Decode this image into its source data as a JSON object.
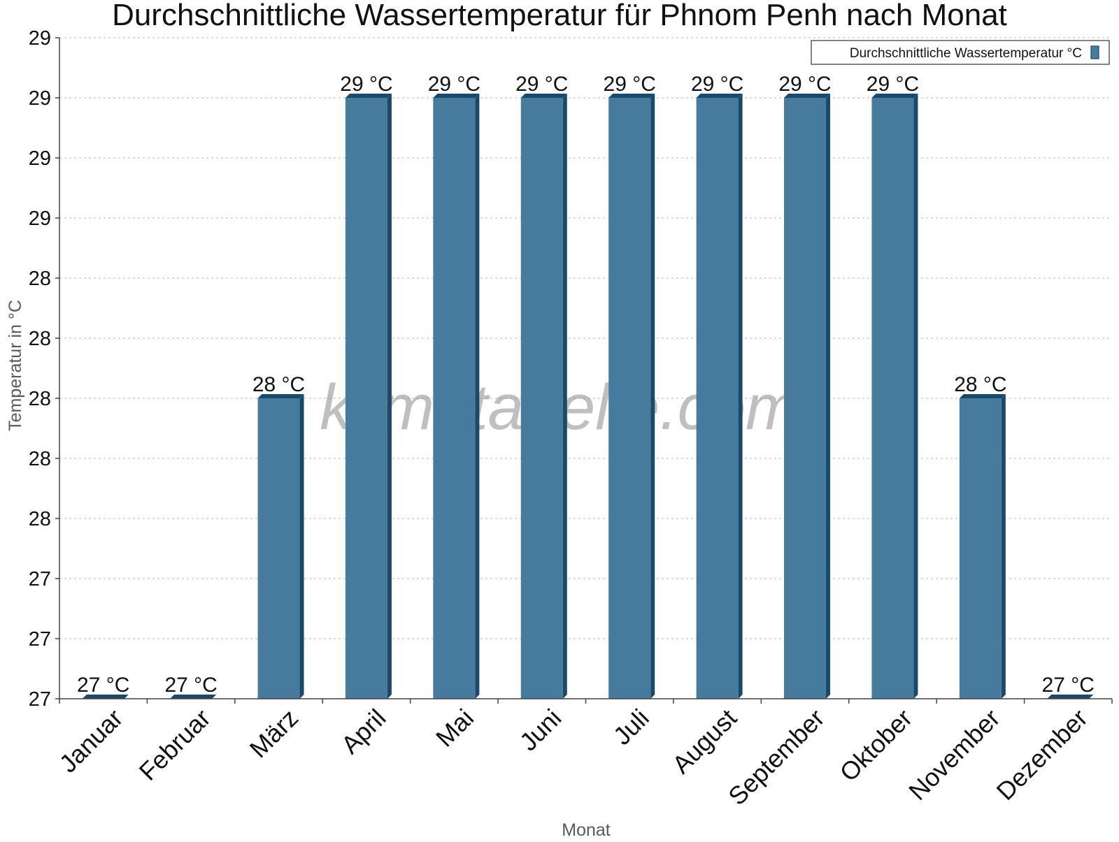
{
  "colors": {
    "bar_face": "#467b9d",
    "bar_side": "#1a4a6b",
    "grid": "#c8c8c8",
    "axis": "#444444"
  },
  "watermark": "klimatabelle.com",
  "chart_data": {
    "type": "bar",
    "title": "Durchschnittliche Wassertemperatur für Phnom Penh nach Monat",
    "xlabel": "Monat",
    "ylabel": "Temperatur in °C",
    "categories": [
      "Januar",
      "Februar",
      "März",
      "April",
      "Mai",
      "Juni",
      "Juli",
      "August",
      "September",
      "Oktober",
      "November",
      "Dezember"
    ],
    "series": [
      {
        "name": "Durchschnittliche Wassertemperatur °C",
        "values": [
          27.0,
          27.0,
          28.0,
          29.0,
          29.0,
          29.0,
          29.0,
          29.0,
          29.0,
          29.0,
          28.0,
          27.0
        ],
        "data_labels": [
          "27 °C",
          "27 °C",
          "28 °C",
          "29 °C",
          "29 °C",
          "29 °C",
          "29 °C",
          "29 °C",
          "29 °C",
          "29 °C",
          "28 °C",
          "27 °C"
        ]
      }
    ],
    "ylim": [
      27.0,
      29.2
    ],
    "yticks": [
      27.0,
      27.2,
      27.4,
      27.6,
      27.8,
      28.0,
      28.2,
      28.4,
      28.6,
      28.8,
      29.0,
      29.2
    ],
    "ytick_labels": [
      "27",
      "27",
      "27",
      "28",
      "28",
      "28",
      "28",
      "28",
      "29",
      "29",
      "29",
      "29"
    ],
    "grid": true,
    "legend_position": "top-right"
  }
}
